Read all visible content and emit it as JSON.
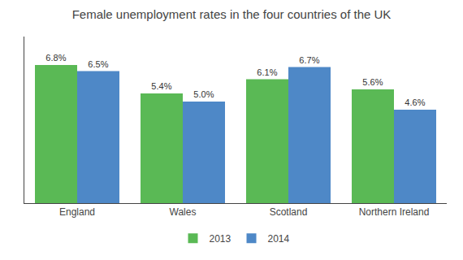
{
  "chart_data": {
    "type": "bar",
    "title": "Female unemployment rates in the four countries of the UK",
    "categories": [
      "England",
      "Wales",
      "Scotland",
      "Northern Ireland"
    ],
    "series": [
      {
        "name": "2013",
        "color": "#5ab955",
        "values": [
          6.8,
          5.4,
          6.1,
          5.6
        ],
        "value_labels": [
          "6.8%",
          "5.4%",
          "6.1%",
          "5.6%"
        ]
      },
      {
        "name": "2014",
        "color": "#4e88c7",
        "values": [
          6.5,
          5.0,
          6.7,
          4.6
        ],
        "value_labels": [
          "6.5%",
          "5.0%",
          "6.7%",
          "4.6%"
        ]
      }
    ],
    "ylim": [
      0,
      8.2
    ],
    "yticks": [],
    "grid": false,
    "legend": "bottom",
    "data_labels": true,
    "tick_labels": "x"
  }
}
